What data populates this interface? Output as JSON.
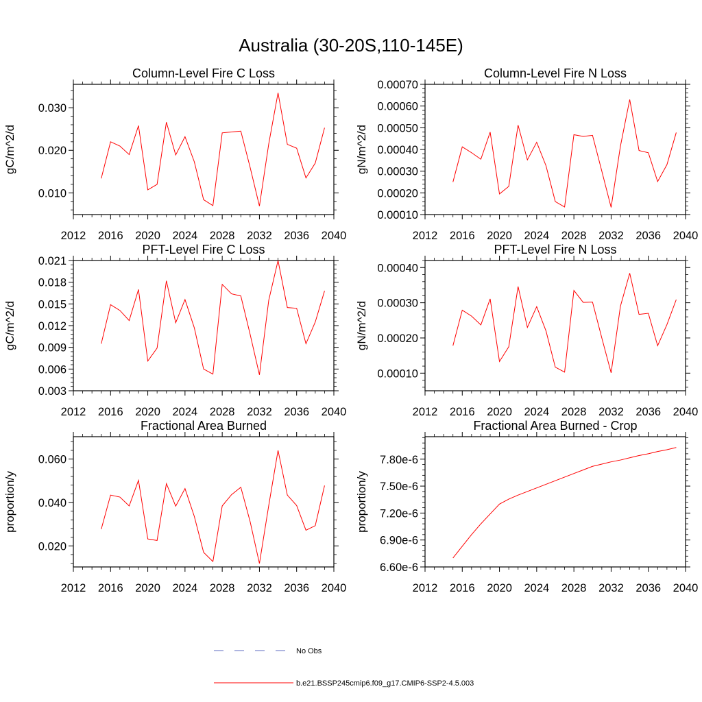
{
  "title": "Australia (30-20S,110-145E)",
  "colors": {
    "model": "#ff0000",
    "obs": "#5c6bc0",
    "axis": "#000000"
  },
  "legend": {
    "obs_label": "No Obs",
    "model_label": "b.e21.BSSP245cmip6.f09_g17.CMIP6-SSP2-4.5.003"
  },
  "chart_data": [
    {
      "type": "line",
      "title": "Column-Level Fire C Loss",
      "ylabel": "gC/m^2/d",
      "xlim": [
        2012,
        2040
      ],
      "ylim": [
        0.0049,
        0.0355
      ],
      "xticks": [
        2012,
        2016,
        2020,
        2024,
        2028,
        2032,
        2036,
        2040
      ],
      "xtick_labels": [
        "2012",
        "2016",
        "2020",
        "2024",
        "2028",
        "2032",
        "2036",
        "2040"
      ],
      "yticks": [
        0.01,
        0.02,
        0.03
      ],
      "ytick_labels": [
        "0.010",
        "0.020",
        "0.030"
      ],
      "x": [
        2015,
        2016,
        2017,
        2018,
        2019,
        2020,
        2021,
        2022,
        2023,
        2024,
        2025,
        2026,
        2027,
        2028,
        2029,
        2030,
        2031,
        2032,
        2033,
        2034,
        2035,
        2036,
        2037,
        2038,
        2039
      ],
      "values": [
        0.0134,
        0.022,
        0.021,
        0.019,
        0.0258,
        0.0107,
        0.012,
        0.0266,
        0.0189,
        0.0232,
        0.0173,
        0.0084,
        0.007,
        0.0241,
        0.0243,
        0.0245,
        0.016,
        0.0069,
        0.0215,
        0.0335,
        0.0214,
        0.0205,
        0.0135,
        0.017,
        0.0253
      ]
    },
    {
      "type": "line",
      "title": "Column-Level Fire N Loss",
      "ylabel": "gN/m^2/d",
      "xlim": [
        2012,
        2040
      ],
      "ylim": [
        0.0001,
        0.0007
      ],
      "xticks": [
        2012,
        2016,
        2020,
        2024,
        2028,
        2032,
        2036,
        2040
      ],
      "xtick_labels": [
        "2012",
        "2016",
        "2020",
        "2024",
        "2028",
        "2032",
        "2036",
        "2040"
      ],
      "yticks": [
        0.0001,
        0.0002,
        0.0003,
        0.0004,
        0.0005,
        0.0006,
        0.0007
      ],
      "ytick_labels": [
        "0.00010",
        "0.00020",
        "0.00030",
        "0.00040",
        "0.00050",
        "0.00060",
        "0.00070"
      ],
      "x": [
        2015,
        2016,
        2017,
        2018,
        2019,
        2020,
        2021,
        2022,
        2023,
        2024,
        2025,
        2026,
        2027,
        2028,
        2029,
        2030,
        2031,
        2032,
        2033,
        2034,
        2035,
        2036,
        2037,
        2038,
        2039
      ],
      "values": [
        0.00025,
        0.000412,
        0.000385,
        0.000355,
        0.00048,
        0.000195,
        0.00023,
        0.000512,
        0.000352,
        0.000433,
        0.000325,
        0.00016,
        0.000135,
        0.000468,
        0.00046,
        0.000465,
        0.0003,
        0.000133,
        0.000415,
        0.00063,
        0.000395,
        0.000385,
        0.000252,
        0.00033,
        0.000478
      ]
    },
    {
      "type": "line",
      "title": "PFT-Level Fire C Loss",
      "ylabel": "gC/m^2/d",
      "xlim": [
        2012,
        2040
      ],
      "ylim": [
        0.003,
        0.021
      ],
      "xticks": [
        2012,
        2016,
        2020,
        2024,
        2028,
        2032,
        2036,
        2040
      ],
      "xtick_labels": [
        "2012",
        "2016",
        "2020",
        "2024",
        "2028",
        "2032",
        "2036",
        "2040"
      ],
      "yticks": [
        0.003,
        0.006,
        0.009,
        0.012,
        0.015,
        0.018,
        0.021
      ],
      "ytick_labels": [
        "0.003",
        "0.006",
        "0.009",
        "0.012",
        "0.015",
        "0.018",
        "0.021"
      ],
      "x": [
        2015,
        2016,
        2017,
        2018,
        2019,
        2020,
        2021,
        2022,
        2023,
        2024,
        2025,
        2026,
        2027,
        2028,
        2029,
        2030,
        2031,
        2032,
        2033,
        2034,
        2035,
        2036,
        2037,
        2038,
        2039
      ],
      "values": [
        0.0095,
        0.0149,
        0.0141,
        0.0127,
        0.017,
        0.0071,
        0.0089,
        0.0182,
        0.0124,
        0.0156,
        0.0117,
        0.006,
        0.0053,
        0.0177,
        0.0164,
        0.0161,
        0.0108,
        0.0052,
        0.0155,
        0.021,
        0.0145,
        0.0144,
        0.0095,
        0.0125,
        0.0168
      ]
    },
    {
      "type": "line",
      "title": "PFT-Level Fire N Loss",
      "ylabel": "gN/m^2/d",
      "xlim": [
        2012,
        2040
      ],
      "ylim": [
        5e-05,
        0.00042
      ],
      "xticks": [
        2012,
        2016,
        2020,
        2024,
        2028,
        2032,
        2036,
        2040
      ],
      "xtick_labels": [
        "2012",
        "2016",
        "2020",
        "2024",
        "2028",
        "2032",
        "2036",
        "2040"
      ],
      "yticks": [
        0.0001,
        0.0002,
        0.0003,
        0.0004
      ],
      "ytick_labels": [
        "0.00010",
        "0.00020",
        "0.00030",
        "0.00040"
      ],
      "x": [
        2015,
        2016,
        2017,
        2018,
        2019,
        2020,
        2021,
        2022,
        2023,
        2024,
        2025,
        2026,
        2027,
        2028,
        2029,
        2030,
        2031,
        2032,
        2033,
        2034,
        2035,
        2036,
        2037,
        2038,
        2039
      ],
      "values": [
        0.000178,
        0.000279,
        0.000262,
        0.000237,
        0.000311,
        0.000133,
        0.000175,
        0.000346,
        0.00023,
        0.000289,
        0.00022,
        0.000117,
        0.000103,
        0.000335,
        0.000301,
        0.000302,
        0.0002,
        0.000101,
        0.00029,
        0.000384,
        0.000267,
        0.00027,
        0.000178,
        0.000238,
        0.000309
      ]
    },
    {
      "type": "line",
      "title": "Fractional Area Burned",
      "ylabel": "proportion/y",
      "xlim": [
        2012,
        2040
      ],
      "ylim": [
        0.0103,
        0.0703
      ],
      "xticks": [
        2012,
        2016,
        2020,
        2024,
        2028,
        2032,
        2036,
        2040
      ],
      "xtick_labels": [
        "2012",
        "2016",
        "2020",
        "2024",
        "2028",
        "2032",
        "2036",
        "2040"
      ],
      "yticks": [
        0.02,
        0.04,
        0.06
      ],
      "ytick_labels": [
        "0.020",
        "0.040",
        "0.060"
      ],
      "x": [
        2015,
        2016,
        2017,
        2018,
        2019,
        2020,
        2021,
        2022,
        2023,
        2024,
        2025,
        2026,
        2027,
        2028,
        2029,
        2030,
        2031,
        2032,
        2033,
        2034,
        2035,
        2036,
        2037,
        2038,
        2039
      ],
      "values": [
        0.0277,
        0.0434,
        0.0425,
        0.0384,
        0.0502,
        0.0232,
        0.0225,
        0.0487,
        0.0383,
        0.0464,
        0.0336,
        0.017,
        0.0128,
        0.0384,
        0.0436,
        0.047,
        0.0312,
        0.0119,
        0.0386,
        0.064,
        0.0434,
        0.0386,
        0.0272,
        0.0293,
        0.0478
      ]
    },
    {
      "type": "line",
      "title": "Fractional Area Burned - Crop",
      "ylabel": "proportion/y",
      "xlim": [
        2012,
        2040
      ],
      "ylim": [
        6.6e-06,
        8.05e-06
      ],
      "xticks": [
        2012,
        2016,
        2020,
        2024,
        2028,
        2032,
        2036,
        2040
      ],
      "xtick_labels": [
        "2012",
        "2016",
        "2020",
        "2024",
        "2028",
        "2032",
        "2036",
        "2040"
      ],
      "yticks": [
        6.6e-06,
        6.9e-06,
        7.2e-06,
        7.5e-06,
        7.8e-06
      ],
      "ytick_labels": [
        "6.60e-6",
        "6.90e-6",
        "7.20e-6",
        "7.50e-6",
        "7.80e-6"
      ],
      "x": [
        2015,
        2016,
        2017,
        2018,
        2019,
        2020,
        2021,
        2022,
        2023,
        2024,
        2025,
        2026,
        2027,
        2028,
        2029,
        2030,
        2031,
        2032,
        2033,
        2034,
        2035,
        2036,
        2037,
        2038,
        2039
      ],
      "values": [
        6.7e-06,
        6.83e-06,
        6.96e-06,
        7.08e-06,
        7.19e-06,
        7.3e-06,
        7.355e-06,
        7.4e-06,
        7.44e-06,
        7.48e-06,
        7.52e-06,
        7.56e-06,
        7.6e-06,
        7.64e-06,
        7.68e-06,
        7.72e-06,
        7.745e-06,
        7.77e-06,
        7.79e-06,
        7.815e-06,
        7.84e-06,
        7.86e-06,
        7.885e-06,
        7.905e-06,
        7.93e-06
      ]
    }
  ]
}
